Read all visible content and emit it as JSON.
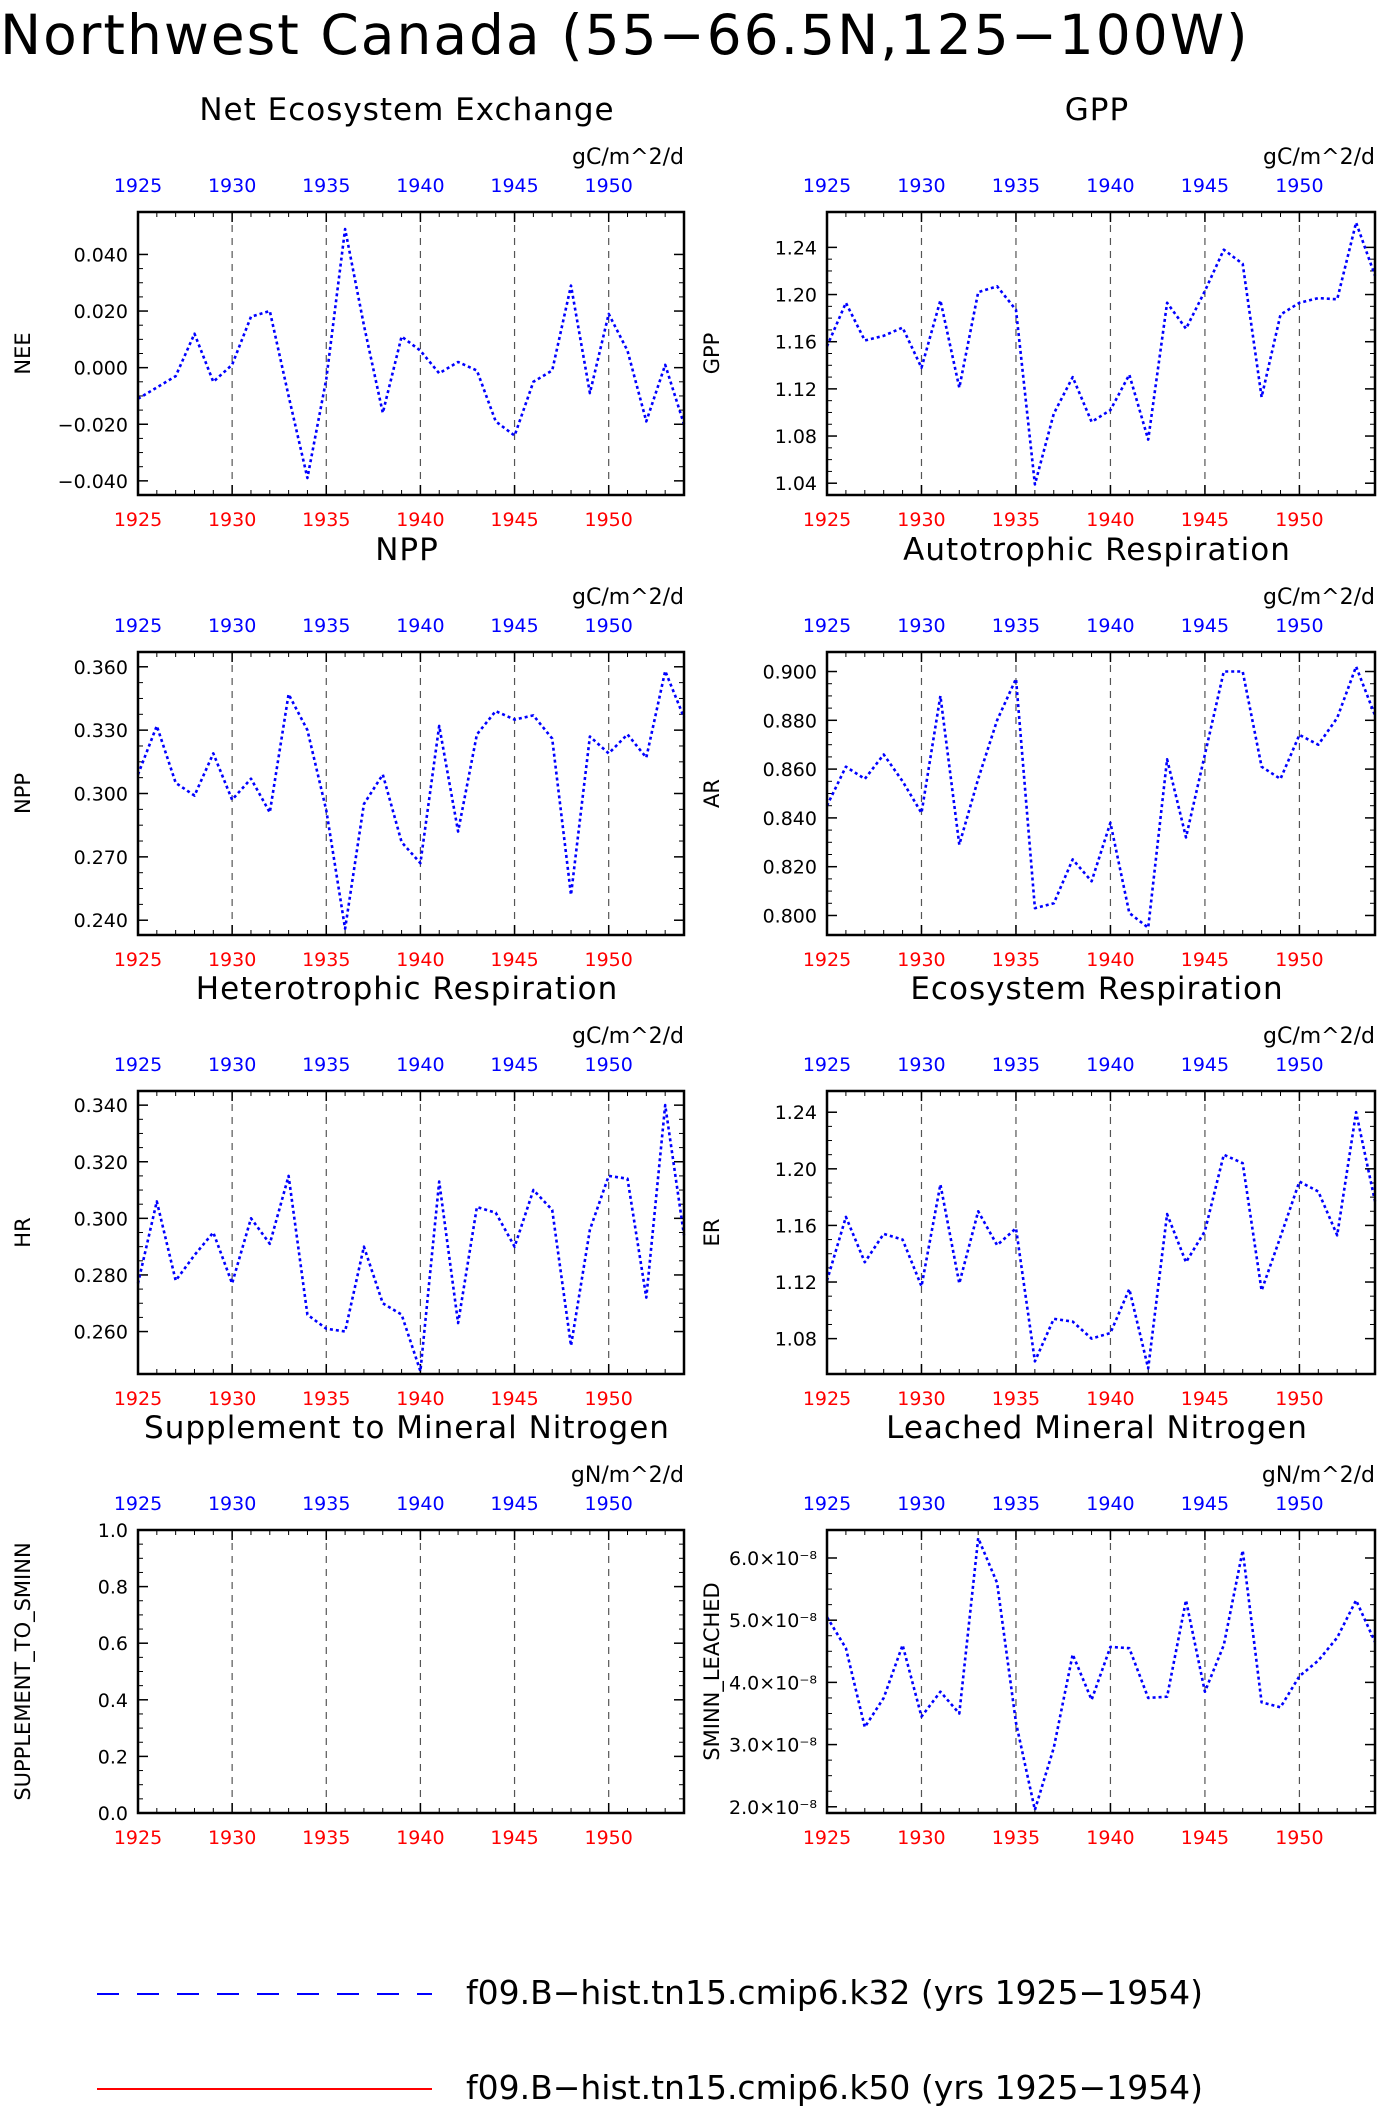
{
  "title": "Northwest Canada (55−66.5N,125−100W)",
  "colors": {
    "series_line": "#0000ff",
    "bottom_ticks": "#ff0000",
    "top_ticks": "#0000ff",
    "grid": "#555555",
    "legend_k32": "#0000ff",
    "legend_k50": "#ff0000"
  },
  "legend": [
    {
      "label": "f09.B−hist.tn15.cmip6.k32 (yrs 1925−1954)",
      "color": "#0000ff",
      "style": "dashed"
    },
    {
      "label": "f09.B−hist.tn15.cmip6.k50 (yrs 1925−1954)",
      "color": "#ff0000",
      "style": "solid"
    }
  ],
  "chart_data": [
    {
      "type": "line",
      "title": "Net Ecosystem Exchange",
      "ylabel": "NEE",
      "units": "gC/m^2/d",
      "xlim": [
        1925,
        1954
      ],
      "ylim": [
        -0.045,
        0.055
      ],
      "yticks": [
        -0.04,
        -0.02,
        0.0,
        0.02,
        0.04
      ],
      "ytick_labels": [
        "−0.040",
        "−0.020",
        "0.000",
        "0.020",
        "0.040"
      ],
      "xticks": [
        1925,
        1930,
        1935,
        1940,
        1945,
        1950
      ],
      "xtick_labels": [
        "1925",
        "1930",
        "1935",
        "1940",
        "1945",
        "1950"
      ],
      "x": [
        1925,
        1926,
        1927,
        1928,
        1929,
        1930,
        1931,
        1932,
        1933,
        1934,
        1935,
        1936,
        1937,
        1938,
        1939,
        1940,
        1941,
        1942,
        1943,
        1944,
        1945,
        1946,
        1947,
        1948,
        1949,
        1950,
        1951,
        1952,
        1953,
        1954
      ],
      "series": [
        {
          "values": [
            -0.011,
            -0.007,
            -0.003,
            0.012,
            -0.005,
            0.001,
            0.018,
            0.02,
            -0.01,
            -0.039,
            -0.004,
            0.049,
            0.015,
            -0.016,
            0.011,
            0.006,
            -0.002,
            0.002,
            -0.001,
            -0.019,
            -0.024,
            -0.005,
            -0.001,
            0.029,
            -0.009,
            0.019,
            0.006,
            -0.019,
            0.001,
            -0.02
          ]
        }
      ]
    },
    {
      "type": "line",
      "title": "GPP",
      "ylabel": "GPP",
      "units": "gC/m^2/d",
      "xlim": [
        1925,
        1954
      ],
      "ylim": [
        1.03,
        1.27
      ],
      "yticks": [
        1.04,
        1.08,
        1.12,
        1.16,
        1.2,
        1.24
      ],
      "ytick_labels": [
        "1.04",
        "1.08",
        "1.12",
        "1.16",
        "1.20",
        "1.24"
      ],
      "xticks": [
        1925,
        1930,
        1935,
        1940,
        1945,
        1950
      ],
      "xtick_labels": [
        "1925",
        "1930",
        "1935",
        "1940",
        "1945",
        "1950"
      ],
      "x": [
        1925,
        1926,
        1927,
        1928,
        1929,
        1930,
        1931,
        1932,
        1933,
        1934,
        1935,
        1936,
        1937,
        1938,
        1939,
        1940,
        1941,
        1942,
        1943,
        1944,
        1945,
        1946,
        1947,
        1948,
        1949,
        1950,
        1951,
        1952,
        1953,
        1954
      ],
      "series": [
        {
          "values": [
            1.156,
            1.193,
            1.161,
            1.165,
            1.172,
            1.138,
            1.195,
            1.121,
            1.202,
            1.207,
            1.187,
            1.039,
            1.099,
            1.13,
            1.092,
            1.102,
            1.132,
            1.077,
            1.193,
            1.171,
            1.203,
            1.238,
            1.226,
            1.113,
            1.183,
            1.193,
            1.197,
            1.196,
            1.261,
            1.216
          ]
        }
      ]
    },
    {
      "type": "line",
      "title": "NPP",
      "ylabel": "NPP",
      "units": "gC/m^2/d",
      "xlim": [
        1925,
        1954
      ],
      "ylim": [
        0.233,
        0.367
      ],
      "yticks": [
        0.24,
        0.27,
        0.3,
        0.33,
        0.36
      ],
      "ytick_labels": [
        "0.240",
        "0.270",
        "0.300",
        "0.330",
        "0.360"
      ],
      "xticks": [
        1925,
        1930,
        1935,
        1940,
        1945,
        1950
      ],
      "xtick_labels": [
        "1925",
        "1930",
        "1935",
        "1940",
        "1945",
        "1950"
      ],
      "x": [
        1925,
        1926,
        1927,
        1928,
        1929,
        1930,
        1931,
        1932,
        1933,
        1934,
        1935,
        1936,
        1937,
        1938,
        1939,
        1940,
        1941,
        1942,
        1943,
        1944,
        1945,
        1946,
        1947,
        1948,
        1949,
        1950,
        1951,
        1952,
        1953,
        1954
      ],
      "series": [
        {
          "values": [
            0.309,
            0.332,
            0.305,
            0.299,
            0.319,
            0.297,
            0.307,
            0.291,
            0.347,
            0.33,
            0.292,
            0.236,
            0.295,
            0.309,
            0.277,
            0.267,
            0.332,
            0.282,
            0.328,
            0.339,
            0.335,
            0.337,
            0.326,
            0.252,
            0.327,
            0.319,
            0.328,
            0.317,
            0.358,
            0.336
          ]
        }
      ]
    },
    {
      "type": "line",
      "title": "Autotrophic Respiration",
      "ylabel": "AR",
      "units": "gC/m^2/d",
      "xlim": [
        1925,
        1954
      ],
      "ylim": [
        0.792,
        0.908
      ],
      "yticks": [
        0.8,
        0.82,
        0.84,
        0.86,
        0.88,
        0.9
      ],
      "ytick_labels": [
        "0.800",
        "0.820",
        "0.840",
        "0.860",
        "0.880",
        "0.900"
      ],
      "xticks": [
        1925,
        1930,
        1935,
        1940,
        1945,
        1950
      ],
      "xtick_labels": [
        "1925",
        "1930",
        "1935",
        "1940",
        "1945",
        "1950"
      ],
      "x": [
        1925,
        1926,
        1927,
        1928,
        1929,
        1930,
        1931,
        1932,
        1933,
        1934,
        1935,
        1936,
        1937,
        1938,
        1939,
        1940,
        1941,
        1942,
        1943,
        1944,
        1945,
        1946,
        1947,
        1948,
        1949,
        1950,
        1951,
        1952,
        1953,
        1954
      ],
      "series": [
        {
          "values": [
            0.845,
            0.861,
            0.856,
            0.866,
            0.855,
            0.842,
            0.89,
            0.829,
            0.856,
            0.88,
            0.897,
            0.803,
            0.805,
            0.823,
            0.814,
            0.838,
            0.801,
            0.795,
            0.864,
            0.832,
            0.866,
            0.9,
            0.9,
            0.861,
            0.856,
            0.874,
            0.87,
            0.881,
            0.902,
            0.882
          ]
        }
      ]
    },
    {
      "type": "line",
      "title": "Heterotrophic Respiration",
      "ylabel": "HR",
      "units": "gC/m^2/d",
      "xlim": [
        1925,
        1954
      ],
      "ylim": [
        0.245,
        0.345
      ],
      "yticks": [
        0.26,
        0.28,
        0.3,
        0.32,
        0.34
      ],
      "ytick_labels": [
        "0.260",
        "0.280",
        "0.300",
        "0.320",
        "0.340"
      ],
      "xticks": [
        1925,
        1930,
        1935,
        1940,
        1945,
        1950
      ],
      "xtick_labels": [
        "1925",
        "1930",
        "1935",
        "1940",
        "1945",
        "1950"
      ],
      "x": [
        1925,
        1926,
        1927,
        1928,
        1929,
        1930,
        1931,
        1932,
        1933,
        1934,
        1935,
        1936,
        1937,
        1938,
        1939,
        1940,
        1941,
        1942,
        1943,
        1944,
        1945,
        1946,
        1947,
        1948,
        1949,
        1950,
        1951,
        1952,
        1953,
        1954
      ],
      "series": [
        {
          "values": [
            0.277,
            0.306,
            0.278,
            0.287,
            0.295,
            0.277,
            0.3,
            0.291,
            0.315,
            0.266,
            0.261,
            0.26,
            0.29,
            0.27,
            0.266,
            0.246,
            0.313,
            0.263,
            0.304,
            0.302,
            0.29,
            0.31,
            0.303,
            0.255,
            0.296,
            0.315,
            0.314,
            0.272,
            0.34,
            0.294
          ]
        }
      ]
    },
    {
      "type": "line",
      "title": "Ecosystem Respiration",
      "ylabel": "ER",
      "units": "gC/m^2/d",
      "xlim": [
        1925,
        1954
      ],
      "ylim": [
        1.055,
        1.255
      ],
      "yticks": [
        1.08,
        1.12,
        1.16,
        1.2,
        1.24
      ],
      "ytick_labels": [
        "1.08",
        "1.12",
        "1.16",
        "1.20",
        "1.24"
      ],
      "xticks": [
        1925,
        1930,
        1935,
        1940,
        1945,
        1950
      ],
      "xtick_labels": [
        "1925",
        "1930",
        "1935",
        "1940",
        "1945",
        "1950"
      ],
      "x": [
        1925,
        1926,
        1927,
        1928,
        1929,
        1930,
        1931,
        1932,
        1933,
        1934,
        1935,
        1936,
        1937,
        1938,
        1939,
        1940,
        1941,
        1942,
        1943,
        1944,
        1945,
        1946,
        1947,
        1948,
        1949,
        1950,
        1951,
        1952,
        1953,
        1954
      ],
      "series": [
        {
          "values": [
            1.121,
            1.166,
            1.134,
            1.154,
            1.15,
            1.117,
            1.189,
            1.119,
            1.17,
            1.146,
            1.158,
            1.064,
            1.094,
            1.092,
            1.08,
            1.084,
            1.115,
            1.059,
            1.168,
            1.134,
            1.156,
            1.21,
            1.204,
            1.114,
            1.152,
            1.191,
            1.184,
            1.153,
            1.24,
            1.177
          ]
        }
      ]
    },
    {
      "type": "line",
      "title": "Supplement to Mineral Nitrogen",
      "ylabel": "SUPPLEMENT_TO_SMINN",
      "units": "gN/m^2/d",
      "xlim": [
        1925,
        1954
      ],
      "ylim": [
        0.0,
        1.0
      ],
      "yticks": [
        0.0,
        0.2,
        0.4,
        0.6,
        0.8,
        1.0
      ],
      "ytick_labels": [
        "0.0",
        "0.2",
        "0.4",
        "0.6",
        "0.8",
        "1.0"
      ],
      "xticks": [
        1925,
        1930,
        1935,
        1940,
        1945,
        1950
      ],
      "xtick_labels": [
        "1925",
        "1930",
        "1935",
        "1940",
        "1945",
        "1950"
      ],
      "x": [],
      "series": []
    },
    {
      "type": "line",
      "title": "Leached Mineral Nitrogen",
      "ylabel": "SMINN_LEACHED",
      "units": "gN/m^2/d",
      "xlim": [
        1925,
        1954
      ],
      "ylim": [
        1.9e-08,
        6.45e-08
      ],
      "yticks": [
        2e-08,
        3e-08,
        4e-08,
        5e-08,
        6e-08
      ],
      "ytick_labels": [
        "2.0×10⁻⁸",
        "3.0×10⁻⁸",
        "4.0×10⁻⁸",
        "5.0×10⁻⁸",
        "6.0×10⁻⁸"
      ],
      "xticks": [
        1925,
        1930,
        1935,
        1940,
        1945,
        1950
      ],
      "xtick_labels": [
        "1925",
        "1930",
        "1935",
        "1940",
        "1945",
        "1950"
      ],
      "x": [
        1925,
        1926,
        1927,
        1928,
        1929,
        1930,
        1931,
        1932,
        1933,
        1934,
        1935,
        1936,
        1937,
        1938,
        1939,
        1940,
        1941,
        1942,
        1943,
        1944,
        1945,
        1946,
        1947,
        1948,
        1949,
        1950,
        1951,
        1952,
        1953,
        1954
      ],
      "series": [
        {
          "values": [
            5.05e-08,
            4.55e-08,
            3.28e-08,
            3.75e-08,
            4.6e-08,
            3.45e-08,
            3.85e-08,
            3.5e-08,
            6.32e-08,
            5.6e-08,
            3.35e-08,
            1.95e-08,
            2.95e-08,
            4.45e-08,
            3.72e-08,
            4.57e-08,
            4.55e-08,
            3.75e-08,
            3.77e-08,
            5.32e-08,
            3.85e-08,
            4.6e-08,
            6.12e-08,
            3.68e-08,
            3.6e-08,
            4.1e-08,
            4.35e-08,
            4.72e-08,
            5.32e-08,
            4.65e-08
          ]
        }
      ]
    }
  ]
}
